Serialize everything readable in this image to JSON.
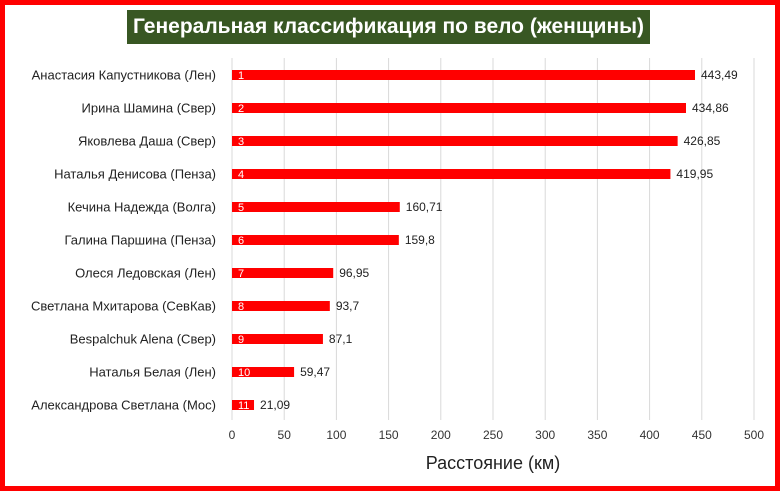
{
  "chart_data": {
    "type": "bar",
    "orientation": "horizontal",
    "title": "Генеральная классификация по вело (женщины)",
    "xlabel": "Расстояние (км)",
    "ylabel": "",
    "xlim": [
      0,
      500
    ],
    "xticks": [
      0,
      50,
      100,
      150,
      200,
      250,
      300,
      350,
      400,
      450,
      500
    ],
    "grid": true,
    "categories": [
      "Анастасия Капустникова (Лен)",
      "Ирина Шамина (Свер)",
      "Яковлева Даша (Свер)",
      "Наталья Денисова (Пенза)",
      "Кечина Надежда (Волга)",
      "Галина Паршина (Пенза)",
      "Олеся Ледовская (Лен)",
      "Светлана Мхитарова (СевКав)",
      "Bespalchuk Alena (Свер)",
      "Наталья Белая (Лен)",
      "Александрова Светлана (Мос)"
    ],
    "values": [
      443.49,
      434.86,
      426.85,
      419.95,
      160.71,
      159.8,
      96.95,
      93.7,
      87.1,
      59.47,
      21.09
    ],
    "value_labels": [
      "443,49",
      "434,86",
      "426,85",
      "419,95",
      "160,71",
      "159,8",
      "96,95",
      "93,7",
      "87,1",
      "59,47",
      "21,09"
    ],
    "ranks": [
      "1",
      "2",
      "3",
      "4",
      "5",
      "6",
      "7",
      "8",
      "9",
      "10",
      "11"
    ],
    "colors": {
      "bar": "#ff0000",
      "border": "#ff0000",
      "title_bg": "#385723",
      "grid": "#d9d9d9"
    }
  }
}
